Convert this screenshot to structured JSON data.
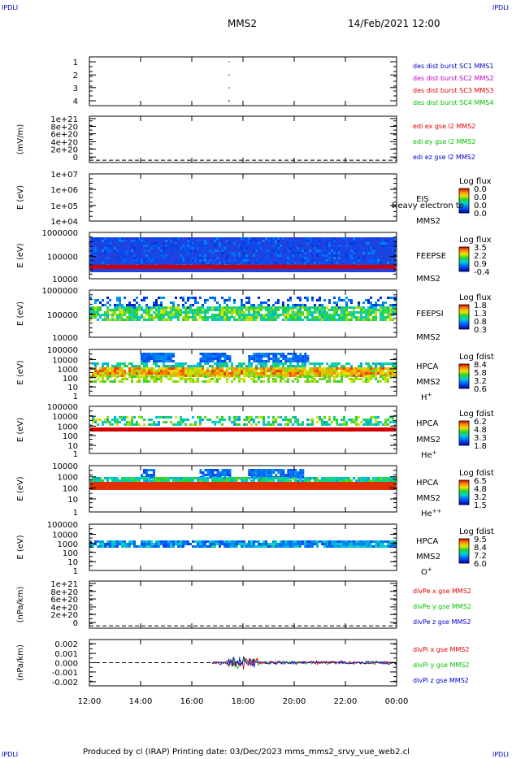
{
  "corners": {
    "tl": "IPDLI",
    "tr": "IPDLI",
    "bl": "IPDLI",
    "br": "IPDLI"
  },
  "header": {
    "spacecraft": "MMS2",
    "datetime": "14/Feb/2021 12:00"
  },
  "footer": {
    "text": "Produced by cl (IRAP)   Printing date: 03/Dec/2023   mms_mms2_srvy_vue_web2.cl"
  },
  "colors": {
    "red": "#e00000",
    "green": "#00c000",
    "blue": "#0000c8",
    "magenta": "#c000c0"
  },
  "chart_data": {
    "type": "multi-panel time series",
    "x_ticks": [
      "12:00",
      "14:00",
      "16:00",
      "18:00",
      "20:00",
      "22:00",
      "00:00"
    ],
    "x_range_hours": [
      12,
      24
    ],
    "panels": [
      {
        "id": "burst",
        "y_ticks": [
          "1",
          "2",
          "3",
          "4"
        ],
        "legend": [
          {
            "text": "des dist burst SC1 MMS1",
            "color": "#0000c8"
          },
          {
            "text": "des dist burst SC2 MMS2",
            "color": "#c000c0"
          },
          {
            "text": "des dist burst SC3 MMS3",
            "color": "#e00000"
          },
          {
            "text": "des dist burst SC4 MMS4",
            "color": "#00c000"
          }
        ],
        "points": [
          {
            "t": 17.45,
            "y": 1,
            "color": "#0000c8"
          },
          {
            "t": 17.45,
            "y": 2,
            "color": "#c000c0"
          },
          {
            "t": 17.45,
            "y": 3,
            "color": "#e00000"
          },
          {
            "t": 17.45,
            "y": 4,
            "color": "#00c000"
          }
        ]
      },
      {
        "id": "edi",
        "ylabel": "(mV/m)",
        "y_ticks": [
          "0",
          "2e+20",
          "4e+20",
          "6e+20",
          "8e+20",
          "1e+21"
        ],
        "legend": [
          {
            "text": "edi ex gse l2 MMS2",
            "color": "#e00000"
          },
          {
            "text": "edi ey gse l2 MMS2",
            "color": "#00c000"
          },
          {
            "text": "edi ez gse l2 MMS2",
            "color": "#0000c8"
          }
        ]
      },
      {
        "id": "eis",
        "ylabel": "E (eV)",
        "y_ticks": [
          "1e+04",
          "1e+05",
          "1e+06",
          "1e+07"
        ],
        "labels": [
          "EIS",
          "MMS2"
        ],
        "overlay": "Heavy electron to",
        "colorbar": {
          "title": "Log flux",
          "ticks": [
            "0.0",
            "0.0",
            "0.0",
            "0.0"
          ]
        }
      },
      {
        "id": "feepse",
        "ylabel": "E (eV)",
        "y_ticks": [
          "10000",
          "100000",
          "1000000"
        ],
        "labels": [
          "FEEPSE",
          "MMS2"
        ],
        "colorbar": {
          "title": "Log flux",
          "ticks": [
            "3.5",
            "2.2",
            "0.9",
            "-0.4"
          ]
        }
      },
      {
        "id": "feepsi",
        "ylabel": "E (eV)",
        "y_ticks": [
          "10000",
          "100000",
          "1000000"
        ],
        "labels": [
          "FEEPSI",
          "MMS2"
        ],
        "colorbar": {
          "title": "Log flux",
          "ticks": [
            "1.8",
            "1.3",
            "0.8",
            "0.3"
          ]
        }
      },
      {
        "id": "hpca_h",
        "ylabel": "E (eV)",
        "y_ticks": [
          "1",
          "10",
          "100",
          "1000",
          "10000",
          "100000"
        ],
        "labels": [
          "HPCA",
          "MMS2"
        ],
        "species": "H",
        "species_sup": "+",
        "colorbar": {
          "title": "Log fdist",
          "ticks": [
            "8.4",
            "5.8",
            "3.2",
            "0.6"
          ]
        }
      },
      {
        "id": "hpca_he",
        "ylabel": "E (eV)",
        "y_ticks": [
          "1",
          "10",
          "100",
          "1000",
          "10000",
          "100000"
        ],
        "labels": [
          "HPCA",
          "MMS2"
        ],
        "species": "He",
        "species_sup": "+",
        "colorbar": {
          "title": "Log fdist",
          "ticks": [
            "6.2",
            "4.8",
            "3.3",
            "1.8"
          ]
        }
      },
      {
        "id": "hpca_he2",
        "ylabel": "E (eV)",
        "y_ticks": [
          "1",
          "10",
          "100",
          "1000",
          "10000"
        ],
        "labels": [
          "HPCA",
          "MMS2"
        ],
        "species": "He",
        "species_sup": "++",
        "colorbar": {
          "title": "Log fdist",
          "ticks": [
            "6.5",
            "4.8",
            "3.2",
            "1.5"
          ]
        }
      },
      {
        "id": "hpca_o",
        "ylabel": "E (eV)",
        "y_ticks": [
          "1",
          "10",
          "100",
          "1000",
          "10000",
          "100000"
        ],
        "labels": [
          "HPCA",
          "MMS2"
        ],
        "species": "O",
        "species_sup": "+",
        "colorbar": {
          "title": "Log fdist",
          "ticks": [
            "9.5",
            "8.4",
            "7.2",
            "6.0"
          ]
        }
      },
      {
        "id": "divpe",
        "ylabel": "(nPa/km)",
        "y_ticks": [
          "0",
          "2e+20",
          "4e+20",
          "6e+20",
          "8e+20",
          "1e+21"
        ],
        "legend": [
          {
            "text": "divPe x gse MMS2",
            "color": "#e00000"
          },
          {
            "text": "divPe y gse MMS2",
            "color": "#00c000"
          },
          {
            "text": "divPe z gse MMS2",
            "color": "#0000c8"
          }
        ]
      },
      {
        "id": "divpi",
        "ylabel": "(nPa/km)",
        "y_ticks": [
          "-0.002",
          "-0.001",
          "0.000",
          "0.001",
          "0.002"
        ],
        "legend": [
          {
            "text": "divPi x gse MMS2",
            "color": "#e00000"
          },
          {
            "text": "divPi y gse MMS2",
            "color": "#00c000"
          },
          {
            "text": "divPi z gse MMS2",
            "color": "#0000c8"
          }
        ]
      }
    ]
  }
}
